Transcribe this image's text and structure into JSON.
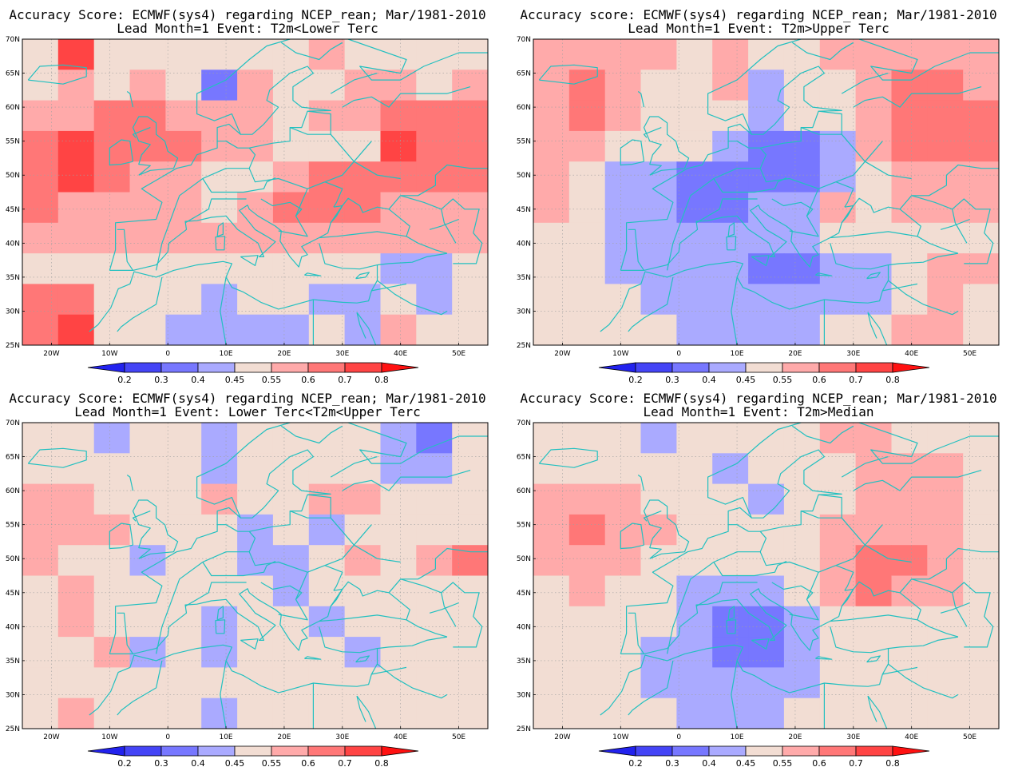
{
  "panels": [
    {
      "id": "lower",
      "title_line1": "Accuracy Score: ECMWF(sys4) regarding NCEP_rean; Mar/1981-2010",
      "title_line2": "Lead Month=1 Event: T2m<Lower Terc",
      "field": [
        "4744444454444",
        "4545425445545",
        "5566555455666",
        "6766655444766",
        "6765544566666",
        "6555545666555",
        "5555555555555",
        "4444444444334",
        "6644434433434",
        "6744333343544"
      ]
    },
    {
      "id": "upper",
      "title_line1": "Accuracy score: ECMWF(sys4) regarding NCEP_rean; Mar/1981-2010",
      "title_line2": "Lead Month=1 Event: T2m>Upper Terc",
      "field": [
        "5555454455555",
        "5654453445665",
        "5654443445666",
        "5544432235666",
        "5433222234555",
        "5433223354555",
        "4433333344444",
        "4433332233455",
        "4443333333454",
        "4444333344554"
      ]
    },
    {
      "id": "middle",
      "title_line1": "Accuracy Score: ECMWF(sys4) regarding NCEP_rean; Mar/1981-2010",
      "title_line2": "Lead Month=1 Event: Lower Terc<T2m<Upper Terc",
      "field": [
        "4434434444324",
        "4444434444334",
        "5544454455444",
        "5554443434444",
        "5443443345456",
        "4544444344444",
        "4544434434444",
        "4453434443444",
        "4444444444444",
        "4544434444444"
      ]
    },
    {
      "id": "median",
      "title_line1": "Accuracy Score: ECMWF(sys4) regarding NCEP_rean; Mar/1981-2010",
      "title_line2": "Lead Month=1 Event: T2m>Median",
      "field": [
        "4443444455444",
        "4444434445554",
        "5554443445554",
        "5655444455554",
        "5554444456654",
        "4544333456554",
        "4444322344444",
        "4443322344444",
        "4443333344444",
        "4444333444444"
      ]
    }
  ],
  "axes": {
    "lat_labels": [
      "70N",
      "65N",
      "60N",
      "55N",
      "50N",
      "45N",
      "40N",
      "35N",
      "30N",
      "25N"
    ],
    "lon_labels": [
      "20W",
      "10W",
      "0",
      "10E",
      "20E",
      "30E",
      "40E",
      "50E"
    ]
  },
  "colorbar": {
    "labels": [
      "0.2",
      "0.3",
      "0.4",
      "0.45",
      "0.55",
      "0.6",
      "0.7",
      "0.8"
    ],
    "colors": [
      "#2222ee",
      "#4444f6",
      "#7777ff",
      "#aaaaff",
      "#f2ddd3",
      "#ffaaaa",
      "#ff7777",
      "#ff4444",
      "#ff1111"
    ]
  },
  "colors": {
    "coast": "#22c0c0",
    "grid": "#a0a0a0"
  }
}
